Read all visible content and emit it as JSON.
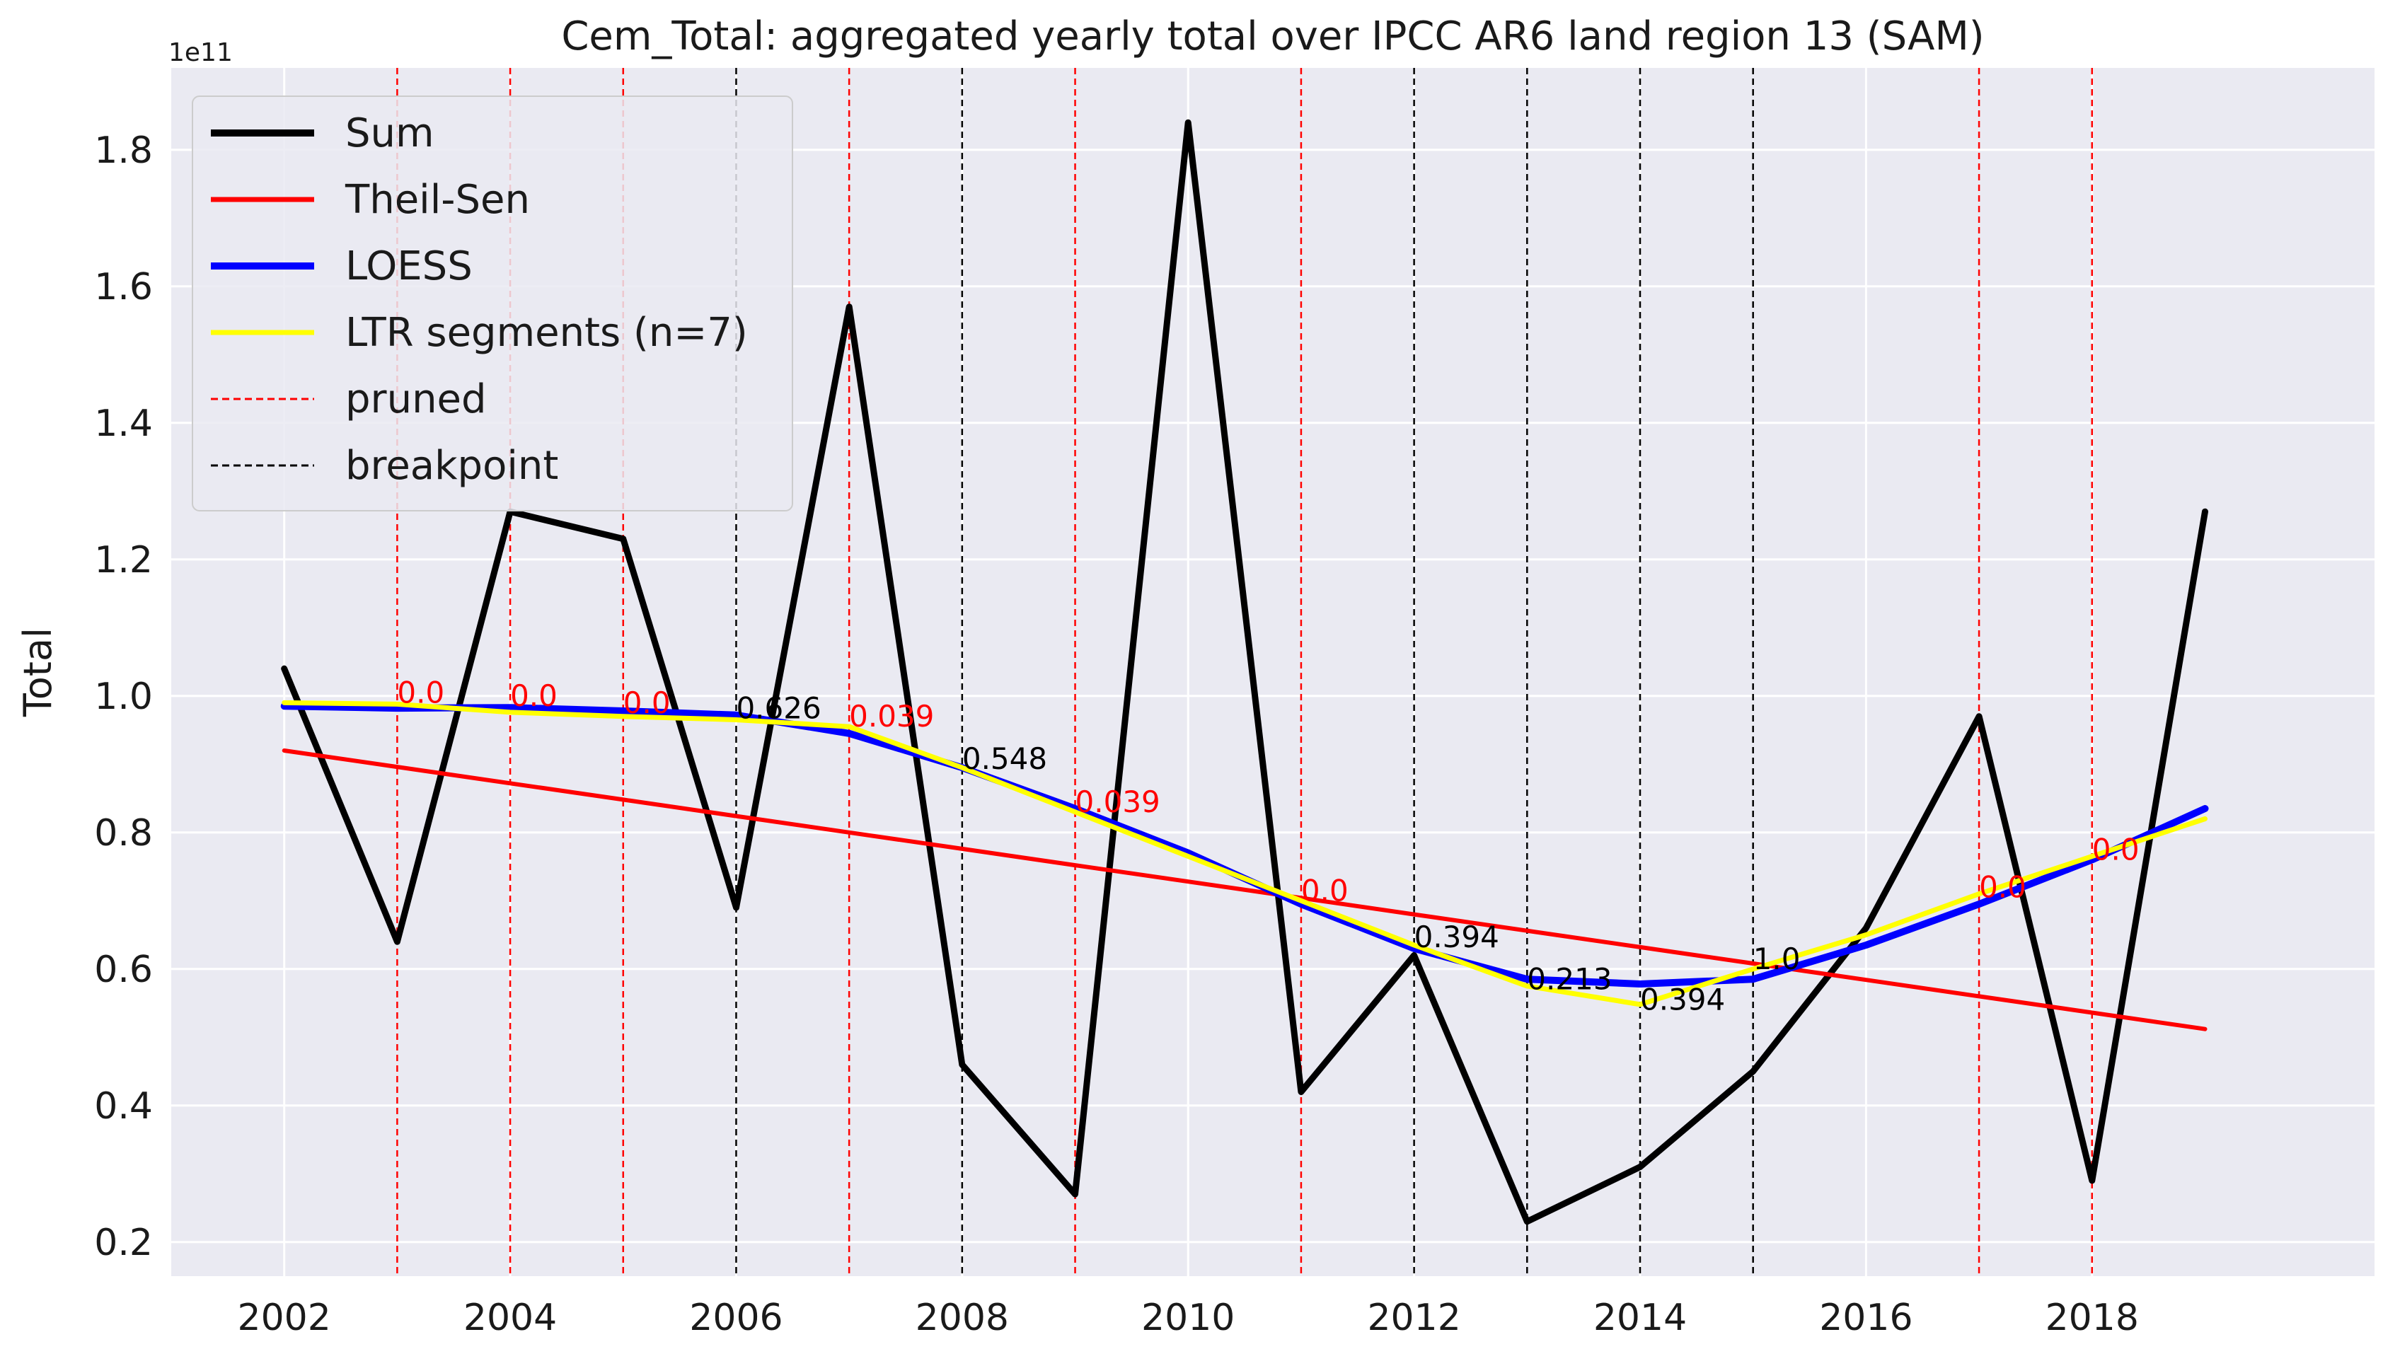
{
  "chart_data": {
    "type": "line",
    "title": "Cem_Total: aggregated yearly total over IPCC AR6 land region 13 (SAM)",
    "ylabel": "Total",
    "xlabel": "",
    "y_offset_label": "1e11",
    "y_scale": 100000000000.0,
    "xlim": [
      2001,
      2020.5
    ],
    "ylim": [
      0.15,
      1.92
    ],
    "x_ticks": [
      2002,
      2004,
      2006,
      2008,
      2010,
      2012,
      2014,
      2016,
      2018
    ],
    "y_ticks": [
      0.2,
      0.4,
      0.6,
      0.8,
      1.0,
      1.2,
      1.4,
      1.6,
      1.8
    ],
    "y_tick_labels": [
      "0.2",
      "0.4",
      "0.6",
      "0.8",
      "1.0",
      "1.2",
      "1.4",
      "1.6",
      "1.8"
    ],
    "grid": true,
    "legend_position": "top-left",
    "x": [
      2002,
      2003,
      2004,
      2005,
      2006,
      2007,
      2008,
      2009,
      2010,
      2011,
      2012,
      2013,
      2014,
      2015,
      2016,
      2017,
      2018,
      2019
    ],
    "series": [
      {
        "name": "Sum",
        "color": "#000000",
        "values": [
          1.04,
          0.64,
          1.27,
          1.23,
          0.69,
          1.57,
          0.46,
          0.27,
          1.84,
          0.42,
          0.62,
          0.23,
          0.31,
          0.45,
          0.66,
          0.97,
          0.29,
          1.27
        ]
      },
      {
        "name": "Theil-Sen",
        "color": "#ff0000",
        "values": [
          0.92,
          0.896,
          0.872,
          0.848,
          0.824,
          0.8,
          0.776,
          0.752,
          0.728,
          0.704,
          0.68,
          0.656,
          0.632,
          0.608,
          0.584,
          0.56,
          0.536,
          0.512
        ]
      },
      {
        "name": "LOESS",
        "color": "#0000ff",
        "values": [
          0.985,
          0.982,
          0.983,
          0.978,
          0.972,
          0.945,
          0.895,
          0.835,
          0.77,
          0.695,
          0.63,
          0.585,
          0.578,
          0.585,
          0.635,
          0.695,
          0.76,
          0.835
        ]
      },
      {
        "name": "LTR segments (n=7)",
        "color": "#ffff00",
        "values": [
          0.99,
          0.988,
          0.976,
          0.97,
          0.965,
          0.955,
          0.895,
          0.83,
          0.765,
          0.7,
          0.635,
          0.575,
          0.548,
          0.6,
          0.65,
          0.71,
          0.765,
          0.82
        ]
      }
    ],
    "legend": [
      {
        "label": "Sum",
        "color": "#000000",
        "style": "solid-thick"
      },
      {
        "label": "Theil-Sen",
        "color": "#ff0000",
        "style": "solid"
      },
      {
        "label": "LOESS",
        "color": "#0000ff",
        "style": "solid-thick"
      },
      {
        "label": "LTR segments (n=7)",
        "color": "#ffff00",
        "style": "solid"
      },
      {
        "label": "pruned",
        "color": "#ff0000",
        "style": "dashed"
      },
      {
        "label": "breakpoint",
        "color": "#000000",
        "style": "dashed"
      }
    ],
    "vertical_lines": [
      {
        "x": 2003,
        "kind": "pruned",
        "label": "0.0",
        "label_y": 0.99
      },
      {
        "x": 2004,
        "kind": "pruned",
        "label": "0.0",
        "label_y": 0.985
      },
      {
        "x": 2005,
        "kind": "pruned",
        "label": "0.0",
        "label_y": 0.975
      },
      {
        "x": 2006,
        "kind": "breakpoint",
        "label": "0.626",
        "label_y": 0.967
      },
      {
        "x": 2007,
        "kind": "pruned",
        "label": "0.039",
        "label_y": 0.955
      },
      {
        "x": 2008,
        "kind": "breakpoint",
        "label": "0.548",
        "label_y": 0.893
      },
      {
        "x": 2009,
        "kind": "pruned",
        "label": "0.039",
        "label_y": 0.83
      },
      {
        "x": 2010,
        "kind": "none",
        "label": "",
        "label_y": 0
      },
      {
        "x": 2011,
        "kind": "pruned",
        "label": "0.0",
        "label_y": 0.7
      },
      {
        "x": 2012,
        "kind": "breakpoint",
        "label": "0.394",
        "label_y": 0.632
      },
      {
        "x": 2013,
        "kind": "breakpoint",
        "label": "0.213",
        "label_y": 0.57
      },
      {
        "x": 2014,
        "kind": "breakpoint",
        "label": "0.394",
        "label_y": 0.54
      },
      {
        "x": 2015,
        "kind": "breakpoint",
        "label": "1.0",
        "label_y": 0.6
      },
      {
        "x": 2016,
        "kind": "none",
        "label": "",
        "label_y": 0
      },
      {
        "x": 2017,
        "kind": "pruned",
        "label": "0.0",
        "label_y": 0.705
      },
      {
        "x": 2018,
        "kind": "pruned",
        "label": "0.0",
        "label_y": 0.76
      }
    ]
  }
}
